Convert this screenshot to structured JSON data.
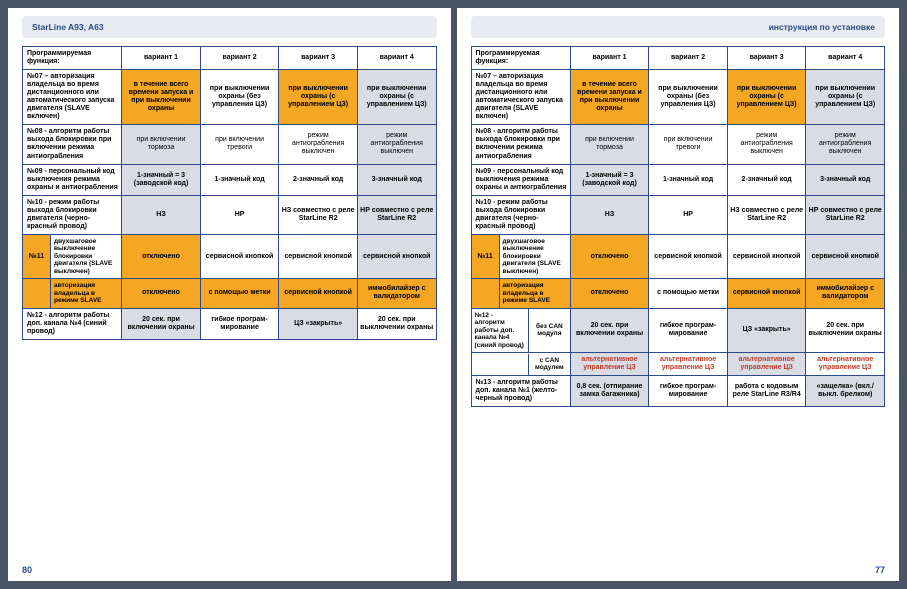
{
  "left": {
    "header": "StarLine A93, A63",
    "pageNum": "80",
    "thead": [
      "Программируемая функция:",
      "вариант 1",
      "вариант 2",
      "вариант 3",
      "вариант 4"
    ],
    "rows": [
      {
        "func": "№07 – авторизация владельца во время дистанционного или автоматического запуска двигателя (SLAVE включен)",
        "cells": [
          {
            "t": "в течение всего времени запуска и при выключении охраны",
            "cls": "orange bold"
          },
          {
            "t": "при выключении охраны (без управления ЦЗ)",
            "cls": "bold"
          },
          {
            "t": "при выключении охраны (с управлением ЦЗ)",
            "cls": "orange bold"
          },
          {
            "t": "при выключении охраны (с управлением ЦЗ)",
            "cls": "gray bold"
          }
        ]
      },
      {
        "func": "№08 - алгоритм работы выхода блокировки при включении режима антиограбления",
        "cells": [
          {
            "t": "при включении тормоза",
            "cls": "gray"
          },
          {
            "t": "при включении тревоги",
            "cls": ""
          },
          {
            "t": "режим антиограбления выключен",
            "cls": ""
          },
          {
            "t": "режим антиограбления выключен",
            "cls": "gray"
          }
        ]
      },
      {
        "func": "№09 - персональный код выключения режима охраны и антиограбления",
        "cells": [
          {
            "t": "1-значный = 3 (заводской код)",
            "cls": "gray bold"
          },
          {
            "t": "1-значный код",
            "cls": "bold"
          },
          {
            "t": "2-значный код",
            "cls": "bold"
          },
          {
            "t": "3-значный код",
            "cls": "gray bold"
          }
        ]
      },
      {
        "func": "№10 - режим работы выхода блокировки двигателя (черно-красный провод)",
        "cells": [
          {
            "t": "НЗ",
            "cls": "gray bold"
          },
          {
            "t": "НР",
            "cls": "bold"
          },
          {
            "t": "НЗ совместно с реле StarLine R2",
            "cls": "bold"
          },
          {
            "t": "НР совместно с реле StarLine R2",
            "cls": "gray bold"
          }
        ]
      }
    ],
    "n11": {
      "label": "№11",
      "sub1": "двухшаговое выключение блокировки двигателя (SLAVE выключен)",
      "sub2": "авторизация владельца в режиме SLAVE",
      "row1": [
        {
          "t": "отключено",
          "cls": "orange bold"
        },
        {
          "t": "сервисной кнопкой",
          "cls": "bold"
        },
        {
          "t": "сервисной кнопкой",
          "cls": "bold"
        },
        {
          "t": "сервисной кнопкой",
          "cls": "gray bold"
        }
      ],
      "row2": [
        {
          "t": "отключено",
          "cls": "orange bold"
        },
        {
          "t": "с помощью метки",
          "cls": "orange bold"
        },
        {
          "t": "сервисной кнопкой",
          "cls": "orange bold"
        },
        {
          "t": "иммобилайзер с валидатором",
          "cls": "orange bold"
        }
      ]
    },
    "r12": {
      "func": "№12 - алгоритм работы доп. канала №4 (синий провод)",
      "cells": [
        {
          "t": "20 сек. при включении охраны",
          "cls": "gray bold"
        },
        {
          "t": "гибкое програм-мирование",
          "cls": "bold"
        },
        {
          "t": "ЦЗ «закрыть»",
          "cls": "gray bold"
        },
        {
          "t": "20 сек. при выключении охраны",
          "cls": "bold"
        }
      ]
    }
  },
  "right": {
    "header": "инструкция по установке",
    "pageNum": "77",
    "thead": [
      "Программируемая функция:",
      "вариант 1",
      "вариант 2",
      "вариант 3",
      "вариант 4"
    ],
    "rows": [
      {
        "func": "№07 – авторизация владельца во время дистанционного или автоматического запуска двигателя (SLAVE включен)",
        "cells": [
          {
            "t": "в течение всего времени запуска и при выключении охраны",
            "cls": "orange bold"
          },
          {
            "t": "при выключении охраны (без управления ЦЗ)",
            "cls": "bold"
          },
          {
            "t": "при выключении охраны (с управлением ЦЗ)",
            "cls": "orange bold"
          },
          {
            "t": "при выключении охраны (с управлением ЦЗ)",
            "cls": "gray bold"
          }
        ]
      },
      {
        "func": "№08 - алгоритм работы выхода блокировки при включении режима антиограбления",
        "cells": [
          {
            "t": "при включении тормоза",
            "cls": "gray"
          },
          {
            "t": "при включении тревоги",
            "cls": ""
          },
          {
            "t": "режим антиограбления выключен",
            "cls": ""
          },
          {
            "t": "режим антиограбления выключен",
            "cls": "gray"
          }
        ]
      },
      {
        "func": "№09 - персональный код выключения режима охраны и антиограбления",
        "cells": [
          {
            "t": "1-значный = 3 (заводской код)",
            "cls": "gray bold"
          },
          {
            "t": "1-значный код",
            "cls": "bold"
          },
          {
            "t": "2-значный код",
            "cls": "bold"
          },
          {
            "t": "3-значный код",
            "cls": "gray bold"
          }
        ]
      },
      {
        "func": "№10 - режим работы выхода блокировки двигателя (черно-красный провод)",
        "cells": [
          {
            "t": "НЗ",
            "cls": "gray bold"
          },
          {
            "t": "НР",
            "cls": "bold"
          },
          {
            "t": "НЗ совместно с реле StarLine R2",
            "cls": "bold"
          },
          {
            "t": "НР совместно с реле StarLine R2",
            "cls": "gray bold"
          }
        ]
      }
    ],
    "n11": {
      "label": "№11",
      "sub1": "двухшаговое выключение блокировки двигателя (SLAVE выключен)",
      "sub2": "авторизация владельца в режиме SLAVE",
      "row1": [
        {
          "t": "отключено",
          "cls": "orange bold"
        },
        {
          "t": "сервисной кнопкой",
          "cls": "bold"
        },
        {
          "t": "сервисной кнопкой",
          "cls": "bold"
        },
        {
          "t": "сервисной кнопкой",
          "cls": "gray bold"
        }
      ],
      "row2": [
        {
          "t": "отключено",
          "cls": "orange bold"
        },
        {
          "t": "с помощью метки",
          "cls": "bold"
        },
        {
          "t": "сервисной кнопкой",
          "cls": "orange bold"
        },
        {
          "t": "иммобилайзер с валидатором",
          "cls": "orange bold"
        }
      ]
    },
    "n12": {
      "func": "№12 - алгоритм работы доп. канала №4 (синий провод)",
      "sub1": "без CAN модуля",
      "sub2": "с CAN модулем",
      "row1": [
        {
          "t": "20 сек. при включении охраны",
          "cls": "gray bold"
        },
        {
          "t": "гибкое програм-мирование",
          "cls": "bold"
        },
        {
          "t": "ЦЗ «закрыть»",
          "cls": "gray bold"
        },
        {
          "t": "20 сек. при выключении охраны",
          "cls": "bold"
        }
      ],
      "row2": [
        {
          "t": "альтернативное управление ЦЗ",
          "cls": "gray red-text"
        },
        {
          "t": "альтернативное управление ЦЗ",
          "cls": "red-text"
        },
        {
          "t": "альтернативное управление ЦЗ",
          "cls": "gray red-text"
        },
        {
          "t": "альтернативное управление ЦЗ",
          "cls": "red-text"
        }
      ]
    },
    "r13": {
      "func": "№13 - алгоритм работы доп. канала №1 (желто-черный провод)",
      "cells": [
        {
          "t": "0,8 сек. (отпирание замка багажника)",
          "cls": "gray bold"
        },
        {
          "t": "гибкое програм-мирование",
          "cls": "bold"
        },
        {
          "t": "работа с кодовым реле StarLine R3/R4",
          "cls": "bold"
        },
        {
          "t": "«защелка» (вкл./выкл. брелком)",
          "cls": "gray bold"
        }
      ]
    }
  }
}
